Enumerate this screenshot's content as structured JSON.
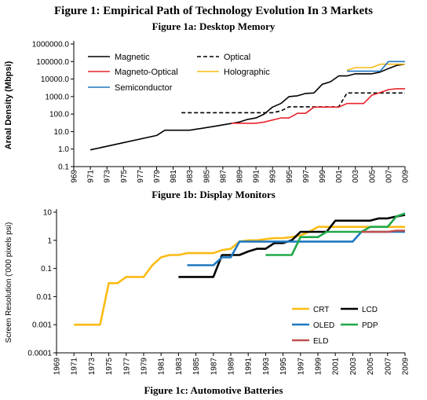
{
  "figure_title": "Figure 1: Empirical Path of Technology Evolution In 3 Markets",
  "subtitles": {
    "a": "Figure 1a: Desktop Memory",
    "b": "Figure 1b: Display Monitors",
    "c": "Figure 1c: Automotive Batteries"
  },
  "chart_data": [
    {
      "type": "line",
      "title": "Figure 1a: Desktop Memory",
      "ylabel": "Areal Density (Mbpsi)",
      "xlabel": "",
      "yscale": "log",
      "ylim": [
        0.1,
        1000000
      ],
      "xlim": [
        1969,
        2009
      ],
      "y_tick_labels": [
        "0.1",
        "1.0",
        "10.0",
        "100.0",
        "1000.0",
        "10000.0",
        "100000.0",
        "1000000.0"
      ],
      "y_tick_values": [
        0.1,
        1,
        10,
        100,
        1000,
        10000,
        100000,
        1000000
      ],
      "x_tick_labels": [
        "969",
        "971",
        "973",
        "975",
        "977",
        "979",
        "981",
        "983",
        "985",
        "987",
        "989",
        "991",
        "993",
        "995",
        "997",
        "999",
        "001",
        "003",
        "005",
        "007",
        "009"
      ],
      "x_tick_values": [
        1969,
        1971,
        1973,
        1975,
        1977,
        1979,
        1981,
        1983,
        1985,
        1987,
        1989,
        1991,
        1993,
        1995,
        1997,
        1999,
        2001,
        2003,
        2005,
        2007,
        2009
      ],
      "grid": false,
      "legend_position": "top-left inside",
      "series": [
        {
          "name": "Magnetic",
          "color": "#000000",
          "dash": false,
          "x": [
            1971,
            1979,
            1980,
            1983,
            1986,
            1989,
            1990,
            1991,
            1992,
            1993,
            1994,
            1995,
            1996,
            1997,
            1998,
            1999,
            2000,
            2001,
            2002,
            2003,
            2005,
            2006,
            2007,
            2008,
            2009
          ],
          "y": [
            0.9,
            6,
            12,
            12,
            20,
            35,
            50,
            60,
            100,
            250,
            400,
            1000,
            1100,
            1500,
            1600,
            5000,
            7000,
            15000,
            15000,
            20000,
            20000,
            25000,
            40000,
            60000,
            70000
          ]
        },
        {
          "name": "Optical",
          "color": "#000000",
          "dash": true,
          "x": [
            1982,
            1993,
            1994,
            1995,
            1996,
            2000,
            2001,
            2002,
            2009
          ],
          "y": [
            120,
            120,
            150,
            260,
            260,
            260,
            260,
            1600,
            1600
          ]
        },
        {
          "name": "Magneto-Optical",
          "color": "#e8232a",
          "dash": false,
          "x": [
            1988,
            1991,
            1992,
            1994,
            1995,
            1996,
            1997,
            1998,
            1999,
            2001,
            2002,
            2003,
            2004,
            2005,
            2006,
            2007,
            2008,
            2009
          ],
          "y": [
            30,
            30,
            35,
            60,
            60,
            110,
            110,
            250,
            250,
            250,
            400,
            400,
            400,
            1200,
            1700,
            2500,
            2800,
            2800
          ]
        },
        {
          "name": "Holographic",
          "color": "#fbbb17",
          "dash": false,
          "x": [
            2002,
            2003,
            2005,
            2006,
            2007,
            2009
          ],
          "y": [
            32000,
            45000,
            45000,
            70000,
            70000,
            70000
          ]
        },
        {
          "name": "Semiconductor",
          "color": "#1f78c1",
          "dash": false,
          "x": [
            2002,
            2005,
            2006,
            2007,
            2008,
            2009
          ],
          "y": [
            28000,
            28000,
            28000,
            100000,
            100000,
            100000
          ]
        }
      ]
    },
    {
      "type": "line",
      "title": "Figure 1b: Display Monitors",
      "ylabel": "Screen Resolution ('000 pixels psi)",
      "xlabel": "",
      "yscale": "log",
      "ylim": [
        0.0001,
        10
      ],
      "xlim": [
        1969,
        2009
      ],
      "y_tick_labels": [
        "0.0001",
        "0.001",
        "0.01",
        "0.1",
        "1",
        "10"
      ],
      "y_tick_values": [
        0.0001,
        0.001,
        0.01,
        0.1,
        1,
        10
      ],
      "x_tick_labels": [
        "1969",
        "1971",
        "1973",
        "1975",
        "1977",
        "1979",
        "1981",
        "1983",
        "1985",
        "1987",
        "1989",
        "1991",
        "1993",
        "1995",
        "1997",
        "1999",
        "2001",
        "2003",
        "2005",
        "2007",
        "2009"
      ],
      "x_tick_values": [
        1969,
        1971,
        1973,
        1975,
        1977,
        1979,
        1981,
        1983,
        1985,
        1987,
        1989,
        1991,
        1993,
        1995,
        1997,
        1999,
        2001,
        2003,
        2005,
        2007,
        2009
      ],
      "grid": false,
      "legend_position": "bottom-right inside",
      "series": [
        {
          "name": "CRT",
          "color": "#fbbb17",
          "x": [
            1971,
            1974,
            1975,
            1976,
            1977,
            1979,
            1980,
            1981,
            1982,
            1983,
            1984,
            1986,
            1987,
            1988,
            1989,
            1990,
            1991,
            1992,
            1993,
            1994,
            1995,
            1996,
            1997,
            1998,
            1999,
            2000,
            2001,
            2003,
            2005,
            2006,
            2007,
            2008,
            2009
          ],
          "y": [
            0.001,
            0.001,
            0.03,
            0.03,
            0.05,
            0.05,
            0.13,
            0.25,
            0.3,
            0.3,
            0.35,
            0.35,
            0.35,
            0.45,
            0.5,
            0.9,
            1,
            1,
            1.1,
            1.2,
            1.2,
            1.3,
            1.5,
            2,
            3,
            3,
            3,
            3,
            3,
            3,
            3,
            3,
            3
          ]
        },
        {
          "name": "LCD",
          "color": "#000000",
          "x": [
            1983,
            1987,
            1988,
            1989,
            1990,
            1991,
            1992,
            1993,
            1994,
            1995,
            1996,
            1997,
            1998,
            1999,
            2000,
            2001,
            2002,
            2003,
            2004,
            2005,
            2006,
            2007,
            2008,
            2009
          ],
          "y": [
            0.05,
            0.05,
            0.3,
            0.3,
            0.3,
            0.4,
            0.5,
            0.5,
            0.8,
            0.8,
            1,
            2,
            2,
            2,
            2,
            5,
            5,
            5,
            5,
            5,
            6,
            6,
            7,
            8
          ]
        },
        {
          "name": "OLED",
          "color": "#1f78c1",
          "x": [
            1984,
            1987,
            1988,
            1989,
            1990,
            2003,
            2004,
            2005,
            2006,
            2007,
            2008,
            2009
          ],
          "y": [
            0.13,
            0.13,
            0.25,
            0.25,
            0.9,
            0.9,
            2,
            2,
            2,
            2,
            2,
            2
          ]
        },
        {
          "name": "PDP",
          "color": "#21a84a",
          "x": [
            1993,
            1996,
            1997,
            1999,
            2000,
            2001,
            2003,
            2004,
            2005,
            2006,
            2007,
            2008,
            2009
          ],
          "y": [
            0.3,
            0.3,
            1.3,
            1.3,
            2,
            2,
            2,
            2,
            3,
            3,
            3,
            7,
            9
          ]
        },
        {
          "name": "ELD",
          "color": "#c0504d",
          "x": [
            2004,
            2005,
            2006,
            2007,
            2008,
            2009
          ],
          "y": [
            2,
            2,
            2,
            2,
            2.2,
            2.2
          ]
        }
      ]
    }
  ]
}
